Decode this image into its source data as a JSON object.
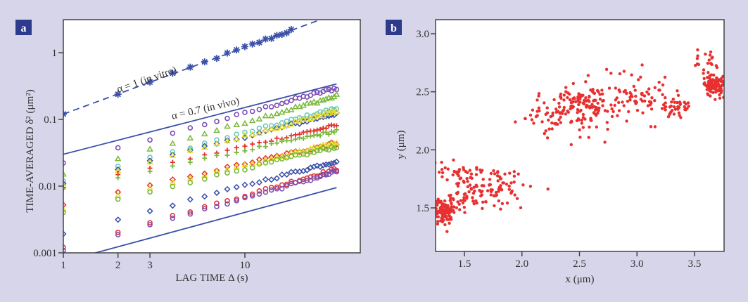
{
  "figure": {
    "background": "#d6d5ea",
    "panel_label_color": "#2e3a8c"
  },
  "chart_data": [
    {
      "panel": "a",
      "type": "scatter",
      "xscale": "log",
      "yscale": "log",
      "xlabel": "LAG TIME Δ (s)",
      "ylabel": "TIME-AVERAGED δ² (μm²)",
      "xlim": [
        1,
        32
      ],
      "ylim": [
        0.001,
        3
      ],
      "xticks": [
        {
          "value": 1,
          "label": "1"
        },
        {
          "value": 2,
          "label": "2"
        },
        {
          "value": 3,
          "label": "3"
        },
        {
          "value": 10,
          "label": "10"
        }
      ],
      "yticks": [
        {
          "value": 0.001,
          "label": "0.001"
        },
        {
          "value": 0.01,
          "label": "0.01"
        },
        {
          "value": 0.1,
          "label": "0.1"
        },
        {
          "value": 1,
          "label": "1"
        }
      ],
      "grid": false,
      "annotations": [
        {
          "text": "α = 1 (in vitro)",
          "near_series": "in-vitro-fit"
        },
        {
          "text": "α = 0.7 (in vivo)",
          "near_series": "in-vivo-upper"
        }
      ],
      "lines": [
        {
          "name": "in-vitro-fit",
          "style": "dashed",
          "color": "#3a4fa8",
          "x": [
            1,
            32
          ],
          "y": [
            0.12,
            3.84
          ]
        },
        {
          "name": "in-vivo-upper",
          "style": "solid",
          "color": "#3a4fa8",
          "x": [
            1,
            32
          ],
          "y": [
            0.03,
            0.34
          ]
        },
        {
          "name": "in-vivo-lower",
          "style": "solid",
          "color": "#3a4fa8",
          "x": [
            1,
            32
          ],
          "y": [
            0.00074,
            0.0095
          ]
        }
      ],
      "series": [
        {
          "name": "in-vitro",
          "marker": "asterisk",
          "color": "#3a4fa8",
          "y_at_1": 0.12,
          "slope": 1.0
        },
        {
          "name": "trajectory-1",
          "marker": "circle",
          "color": "#7b4fb5",
          "y_at_1": 0.022,
          "slope": 0.75
        },
        {
          "name": "trajectory-2",
          "marker": "triangle",
          "color": "#7ab83a",
          "y_at_1": 0.015,
          "slope": 0.78
        },
        {
          "name": "trajectory-3",
          "marker": "circle",
          "color": "#6cc8c0",
          "y_at_1": 0.012,
          "slope": 0.72
        },
        {
          "name": "trajectory-4",
          "marker": "diamond",
          "color": "#3a4fa8",
          "y_at_1": 0.011,
          "slope": 0.7
        },
        {
          "name": "trajectory-5",
          "marker": "triangle",
          "color": "#e6e02a",
          "y_at_1": 0.01,
          "slope": 0.75
        },
        {
          "name": "trajectory-6",
          "marker": "plus",
          "color": "#e63232",
          "y_at_1": 0.0095,
          "slope": 0.62
        },
        {
          "name": "trajectory-7",
          "marker": "plus",
          "color": "#7ab83a",
          "y_at_1": 0.009,
          "slope": 0.58
        },
        {
          "name": "trajectory-8",
          "marker": "diamond",
          "color": "#e63232",
          "y_at_1": 0.0052,
          "slope": 0.62
        },
        {
          "name": "trajectory-9",
          "marker": "triangle",
          "color": "#e6e02a",
          "y_at_1": 0.0045,
          "slope": 0.66
        },
        {
          "name": "trajectory-10",
          "marker": "circle",
          "color": "#7ab83a",
          "y_at_1": 0.004,
          "slope": 0.66
        },
        {
          "name": "trajectory-11",
          "marker": "diamond",
          "color": "#3a4fa8",
          "y_at_1": 0.0019,
          "slope": 0.73
        },
        {
          "name": "trajectory-12",
          "marker": "circle",
          "color": "#e63232",
          "y_at_1": 0.0012,
          "slope": 0.78
        },
        {
          "name": "trajectory-13",
          "marker": "circle",
          "color": "#7b4fb5",
          "y_at_1": 0.0011,
          "slope": 0.78
        }
      ]
    },
    {
      "panel": "b",
      "type": "scatter",
      "xlabel": "x (μm)",
      "ylabel": "y (μm)",
      "xlim": [
        1.25,
        3.75
      ],
      "ylim": [
        1.12,
        3.1
      ],
      "xticks": [
        {
          "value": 1.5,
          "label": "1.5"
        },
        {
          "value": 2.0,
          "label": "2.0"
        },
        {
          "value": 2.5,
          "label": "2.5"
        },
        {
          "value": 3.0,
          "label": "3.0"
        },
        {
          "value": 3.5,
          "label": "3.5"
        }
      ],
      "yticks": [
        {
          "value": 1.5,
          "label": "1.5"
        },
        {
          "value": 2.0,
          "label": "2.0"
        },
        {
          "value": 2.5,
          "label": "2.5"
        },
        {
          "value": 3.0,
          "label": "3.0"
        }
      ],
      "grid": false,
      "point_color": "#e83030",
      "clusters": [
        {
          "cx": 1.32,
          "cy": 1.47,
          "sx": 0.06,
          "sy": 0.05,
          "n": 120
        },
        {
          "cx": 1.55,
          "cy": 1.62,
          "sx": 0.12,
          "sy": 0.08,
          "n": 60
        },
        {
          "cx": 1.45,
          "cy": 1.8,
          "sx": 0.08,
          "sy": 0.05,
          "n": 35
        },
        {
          "cx": 1.8,
          "cy": 1.7,
          "sx": 0.13,
          "sy": 0.1,
          "n": 60
        },
        {
          "cx": 2.4,
          "cy": 2.33,
          "sx": 0.18,
          "sy": 0.1,
          "n": 120
        },
        {
          "cx": 2.55,
          "cy": 2.42,
          "sx": 0.1,
          "sy": 0.07,
          "n": 60
        },
        {
          "cx": 2.95,
          "cy": 2.45,
          "sx": 0.18,
          "sy": 0.12,
          "n": 70
        },
        {
          "cx": 3.35,
          "cy": 2.38,
          "sx": 0.08,
          "sy": 0.06,
          "n": 40
        },
        {
          "cx": 3.68,
          "cy": 2.55,
          "sx": 0.05,
          "sy": 0.04,
          "n": 110
        },
        {
          "cx": 3.6,
          "cy": 2.75,
          "sx": 0.05,
          "sy": 0.05,
          "n": 20
        }
      ]
    }
  ]
}
